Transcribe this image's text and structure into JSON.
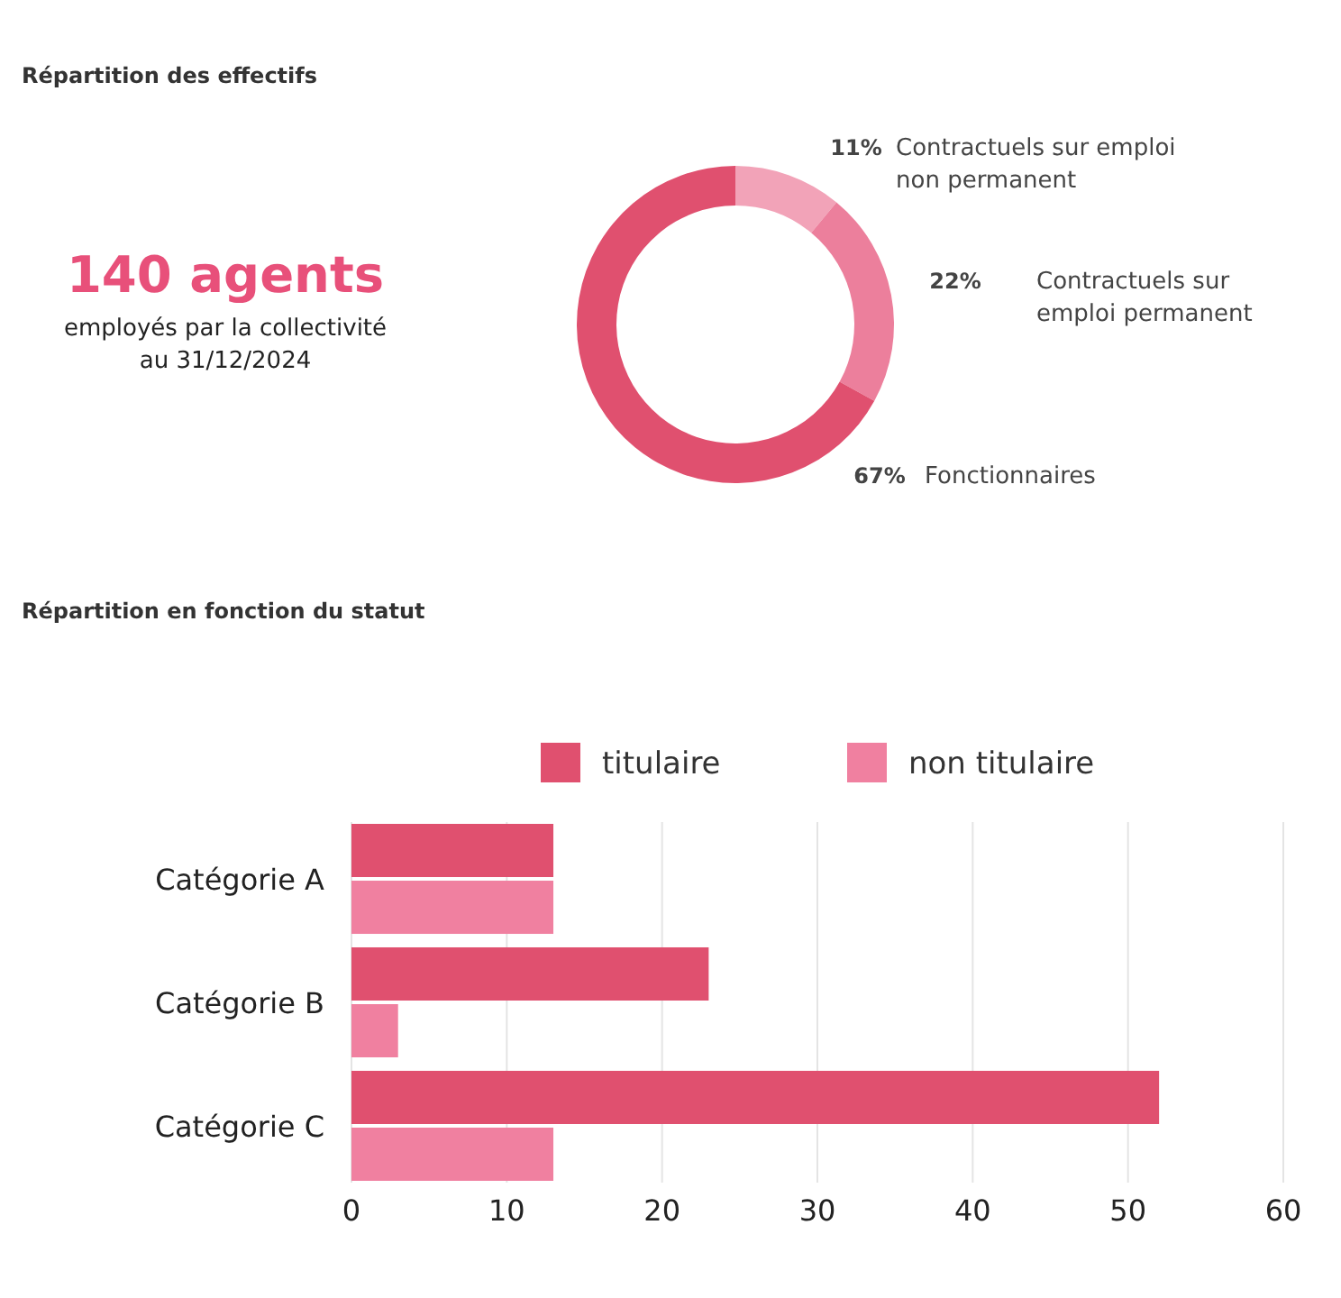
{
  "chart_data": [
    {
      "type": "other",
      "title": "140 agents",
      "subtitle": "employés par la collectivité au 31/12/2024",
      "color": "#e8507a"
    },
    {
      "type": "donut",
      "title": "Répartition des effectifs",
      "categories": [
        "Contractuels sur emploi non permanent",
        "Contractuels sur emploi permanent",
        "Fonctionnaires"
      ],
      "values": [
        11,
        22,
        67
      ],
      "colors": [
        "#f2a3b8",
        "#ec7f9c",
        "#e0506f"
      ],
      "value_labels": [
        "11%",
        "22%",
        "67%"
      ]
    },
    {
      "type": "bar",
      "orientation": "horizontal",
      "title": "Répartition en fonction du statut",
      "categories": [
        "Catégorie A",
        "Catégorie B",
        "Catégorie C"
      ],
      "series": [
        {
          "name": "titulaire",
          "color": "#e0506f",
          "values": [
            13,
            23,
            52
          ]
        },
        {
          "name": "non titulaire",
          "color": "#f080a0",
          "values": [
            13,
            3,
            13
          ]
        }
      ],
      "xlim": [
        0,
        60
      ],
      "xticks": [
        0,
        10,
        20,
        30,
        40,
        50,
        60
      ],
      "grid": "x",
      "legend": "top"
    }
  ]
}
